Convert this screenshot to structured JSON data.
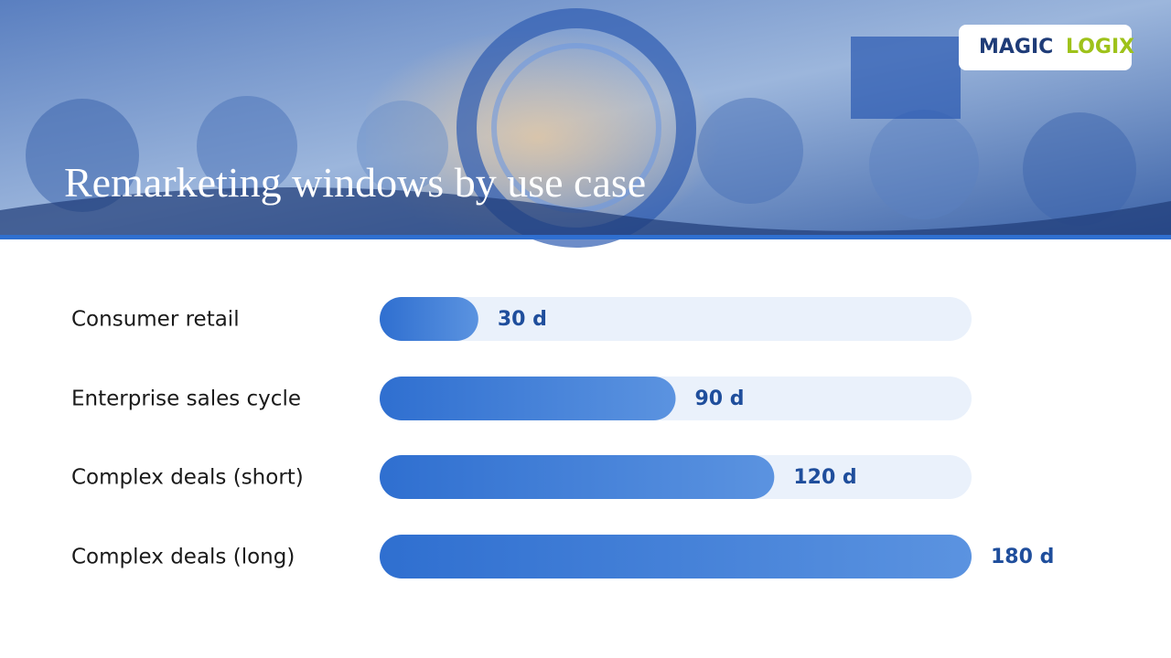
{
  "brand": {
    "part1": "MAGIC",
    "part2": "LOGIX"
  },
  "chart_data": {
    "type": "bar",
    "orientation": "horizontal",
    "title": "Remarketing windows by use case",
    "categories": [
      "Consumer retail",
      "Enterprise sales cycle",
      "Complex deals (short)",
      "Complex deals (long)"
    ],
    "values": [
      30,
      90,
      120,
      180
    ],
    "value_labels": [
      "30 d",
      "90 d",
      "120 d",
      "180 d"
    ],
    "color": "#2f6fd0",
    "xlim": [
      0,
      180
    ]
  }
}
